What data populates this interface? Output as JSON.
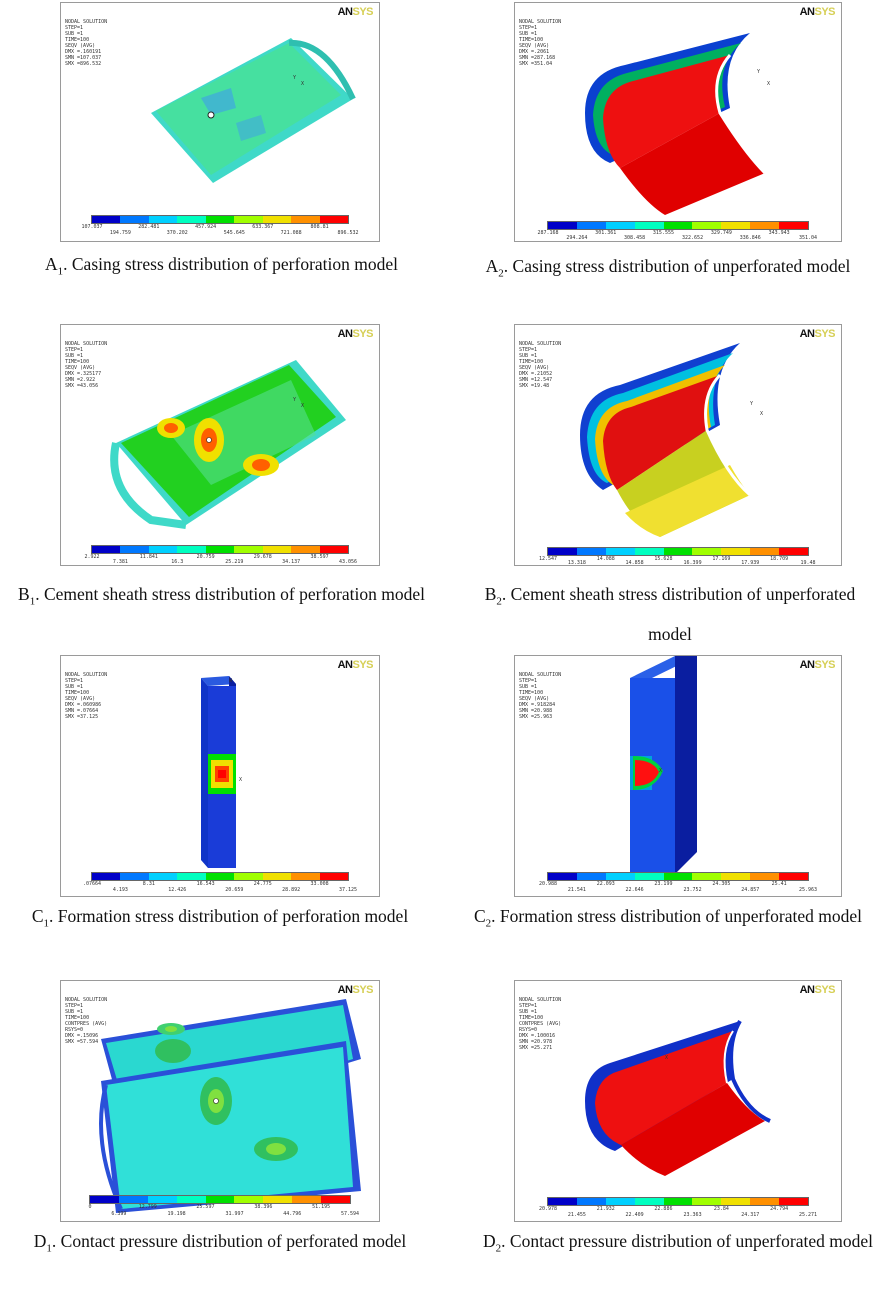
{
  "colors": {
    "contour": [
      "#0000c8",
      "#0078ff",
      "#00d0ff",
      "#00ffc0",
      "#00e000",
      "#a0ff00",
      "#f0e000",
      "#ff9000",
      "#ff0000"
    ],
    "logo_dark": "#111111",
    "logo_light": "#d6cf55"
  },
  "panels": [
    {
      "id": "A1",
      "header": [
        "NODAL SOLUTION",
        "STEP=1",
        "SUB =1",
        "TIME=100",
        "SEQV (AVG)",
        "DMX =.160191",
        "SMN =107.037",
        "SMX =896.532"
      ],
      "logo": {
        "a": "AN",
        "b": "SYS"
      },
      "legend_top": [
        "107.037",
        "282.481",
        "457.924",
        "633.367",
        "808.81"
      ],
      "legend_bottom": [
        "194.759",
        "370.202",
        "545.645",
        "721.088",
        "896.532"
      ],
      "caption_prefix": "A",
      "caption_sub": "1",
      "caption_text": ". Casing stress distribution of perforation model"
    },
    {
      "id": "A2",
      "header": [
        "NODAL SOLUTION",
        "STEP=1",
        "SUB =1",
        "TIME=100",
        "SEQV (AVG)",
        "DMX =.2061",
        "SMN =287.168",
        "SMX =351.04"
      ],
      "logo": {
        "a": "AN",
        "b": "SYS"
      },
      "legend_top": [
        "287.168",
        "301.361",
        "315.555",
        "329.749",
        "343.943"
      ],
      "legend_bottom": [
        "294.264",
        "308.458",
        "322.652",
        "336.846",
        "351.04"
      ],
      "caption_prefix": "A",
      "caption_sub": "2",
      "caption_text": ". Casing stress distribution of unperforated model"
    },
    {
      "id": "B1",
      "header": [
        "NODAL SOLUTION",
        "STEP=1",
        "SUB =1",
        "TIME=100",
        "SEQV (AVG)",
        "DMX =.325177",
        "SMN =2.922",
        "SMX =43.056"
      ],
      "logo": {
        "a": "AN",
        "b": "SYS"
      },
      "legend_top": [
        "2.922",
        "11.841",
        "20.759",
        "29.678",
        "38.597"
      ],
      "legend_bottom": [
        "7.381",
        "16.3",
        "25.219",
        "34.137",
        "43.056"
      ],
      "caption_prefix": "B",
      "caption_sub": "1",
      "caption_text": ". Cement sheath stress distribution of perforation model"
    },
    {
      "id": "B2",
      "header": [
        "NODAL SOLUTION",
        "STEP=1",
        "SUB =1",
        "TIME=100",
        "SEQV (AVG)",
        "DMX =.21052",
        "SMN =12.547",
        "SMX =19.48"
      ],
      "logo": {
        "a": "AN",
        "b": "SYS"
      },
      "legend_top": [
        "12.547",
        "14.088",
        "15.628",
        "17.169",
        "18.709"
      ],
      "legend_bottom": [
        "13.318",
        "14.858",
        "16.399",
        "17.939",
        "19.48"
      ],
      "caption_prefix": "B",
      "caption_sub": "2",
      "caption_text": ". Cement sheath stress distribution of unperforated model"
    },
    {
      "id": "C1",
      "header": [
        "NODAL SOLUTION",
        "STEP=1",
        "SUB =1",
        "TIME=100",
        "SEQV (AVG)",
        "DMX =.060986",
        "SMN =.07664",
        "SMX =37.125"
      ],
      "logo": {
        "a": "AN",
        "b": "SYS"
      },
      "legend_top": [
        ".07664",
        "8.31",
        "16.543",
        "24.775",
        "33.008"
      ],
      "legend_bottom": [
        "4.193",
        "12.426",
        "20.659",
        "28.892",
        "37.125"
      ],
      "caption_prefix": "C",
      "caption_sub": "1",
      "caption_text": ". Formation stress distribution of perforation model"
    },
    {
      "id": "C2",
      "header": [
        "NODAL SOLUTION",
        "STEP=1",
        "SUB =1",
        "TIME=100",
        "SEQV (AVG)",
        "DMX =.918284",
        "SMN =20.988",
        "SMX =25.963"
      ],
      "logo": {
        "a": "AN",
        "b": "SYS"
      },
      "legend_top": [
        "20.988",
        "22.093",
        "23.199",
        "24.305",
        "25.41"
      ],
      "legend_bottom": [
        "21.541",
        "22.646",
        "23.752",
        "24.857",
        "25.963"
      ],
      "caption_prefix": "C",
      "caption_sub": "2",
      "caption_text": ". Formation stress distribution of unperforated model"
    },
    {
      "id": "D1",
      "header": [
        "NODAL SOLUTION",
        "STEP=1",
        "SUB =1",
        "TIME=100",
        "CONTPRES (AVG)",
        "RSYS=0",
        "DMX =.15096",
        "SMX =57.594"
      ],
      "logo": {
        "a": "AN",
        "b": "SYS"
      },
      "legend_top": [
        "0",
        "12.799",
        "25.597",
        "38.396",
        "51.195"
      ],
      "legend_bottom": [
        "6.399",
        "19.198",
        "31.997",
        "44.796",
        "57.594"
      ],
      "caption_prefix": "D",
      "caption_sub": "1",
      "caption_text": ". Contact pressure distribution of perforated model"
    },
    {
      "id": "D2",
      "header": [
        "NODAL SOLUTION",
        "STEP=1",
        "SUB =1",
        "TIME=100",
        "CONTPRES (AVG)",
        "RSYS=0",
        "DMX =.100016",
        "SMN =20.978",
        "SMX =25.271"
      ],
      "logo": {
        "a": "AN",
        "b": "SYS"
      },
      "legend_top": [
        "20.978",
        "21.932",
        "22.886",
        "23.84",
        "24.794"
      ],
      "legend_bottom": [
        "21.455",
        "22.409",
        "23.363",
        "24.317",
        "25.271"
      ],
      "caption_prefix": "D",
      "caption_sub": "2",
      "caption_text": ". Contact pressure distribution of unperforated model"
    }
  ]
}
